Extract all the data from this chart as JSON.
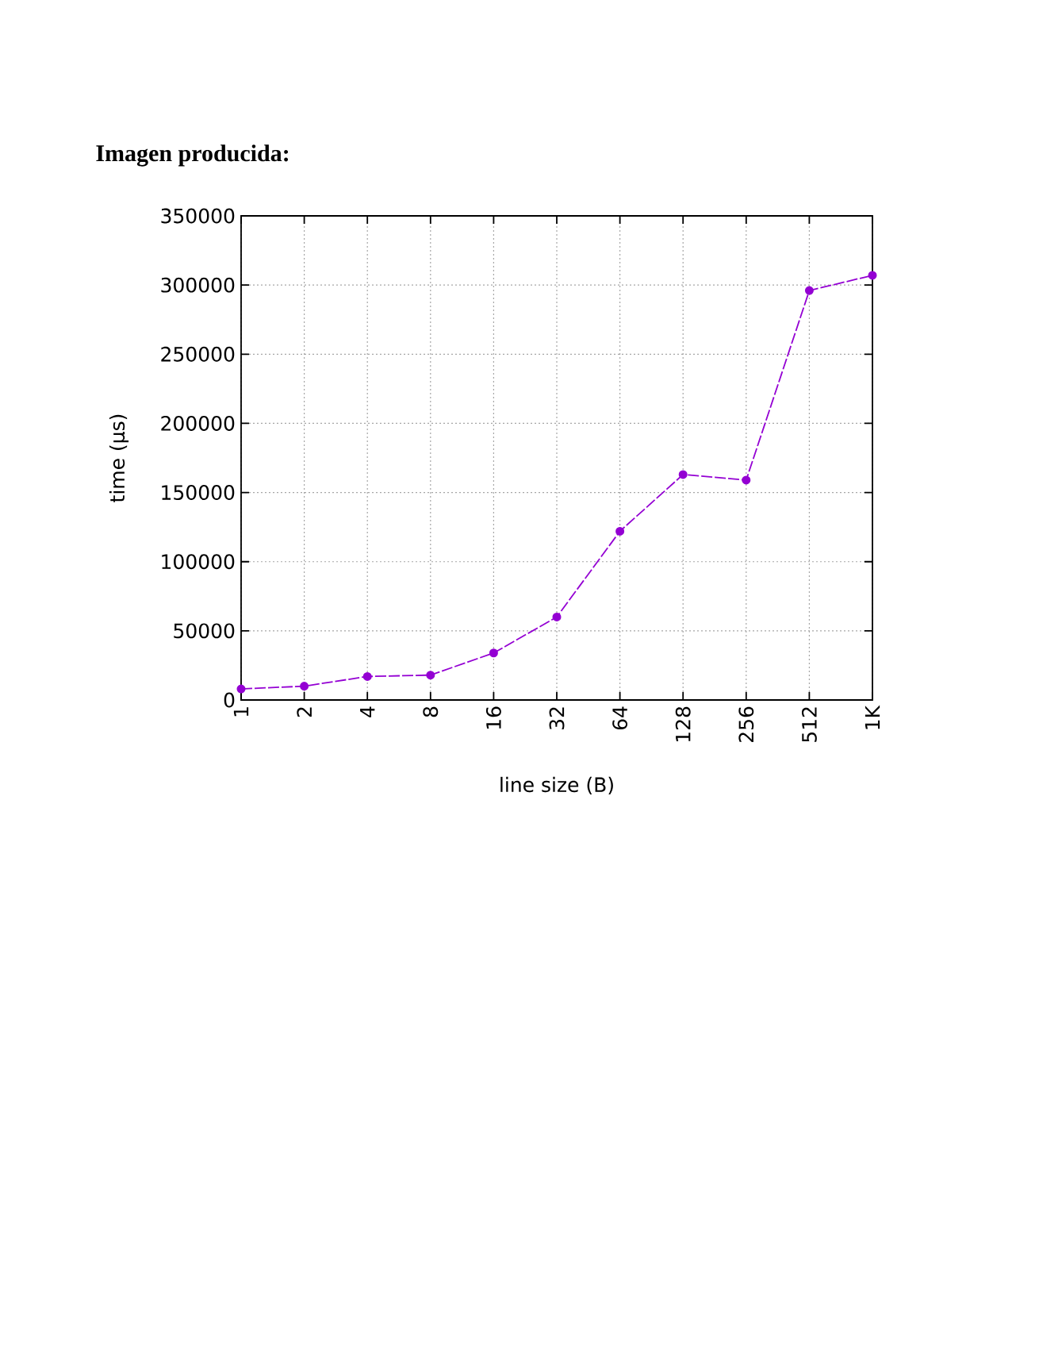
{
  "chart_data": {
    "type": "line",
    "title": "Imagen producida:",
    "xlabel": "line size (B)",
    "ylabel": "time (µs)",
    "categories": [
      "1",
      "2",
      "4",
      "8",
      "16",
      "32",
      "64",
      "128",
      "256",
      "512",
      "1K"
    ],
    "values": [
      8000,
      10000,
      17000,
      18000,
      34000,
      60000,
      122000,
      163000,
      159000,
      296000,
      307000
    ],
    "color": "#9400d3",
    "ylim": [
      0,
      350000
    ],
    "yticks": [
      0,
      50000,
      100000,
      150000,
      200000,
      250000,
      300000,
      350000
    ],
    "grid": true,
    "marker": "circle",
    "line_style": "dashed"
  }
}
